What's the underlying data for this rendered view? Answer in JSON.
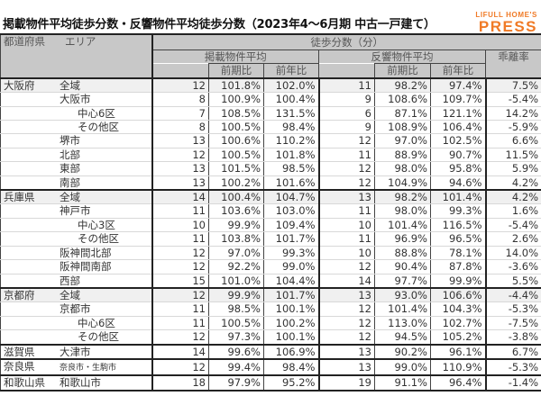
{
  "title": "掲載物件平均徒歩分数・反響物件平均徒歩分数（2023年4〜6月期 中古一戸建て）",
  "logo": {
    "line1": "LIFULL HOME'S",
    "line2": "PRESS",
    "color": "#f07a26"
  },
  "header": {
    "pref_label": "都道府県",
    "area_label": "エリア",
    "group_label": "徒歩分数（分）",
    "listing_avg": "掲載物件平均",
    "response_avg": "反響物件平均",
    "divergence": "乖離率",
    "qoq": "前期比",
    "yoy": "前年比"
  },
  "rows": [
    {
      "pref": "大阪府",
      "area": "全域",
      "indent": 0,
      "l": "12",
      "l_qoq": "101.8%",
      "l_yoy": "102.0%",
      "r": "11",
      "r_qoq": "98.2%",
      "r_yoy": "97.4%",
      "div": "7.5%"
    },
    {
      "pref": "",
      "area": "大阪市",
      "indent": 1,
      "l": "8",
      "l_qoq": "100.9%",
      "l_yoy": "100.4%",
      "r": "9",
      "r_qoq": "108.6%",
      "r_yoy": "109.7%",
      "div": "-5.4%"
    },
    {
      "pref": "",
      "area": "中心6区",
      "indent": 2,
      "l": "7",
      "l_qoq": "108.5%",
      "l_yoy": "131.5%",
      "r": "6",
      "r_qoq": "87.1%",
      "r_yoy": "121.1%",
      "div": "14.2%"
    },
    {
      "pref": "",
      "area": "その他区",
      "indent": 2,
      "l": "8",
      "l_qoq": "100.5%",
      "l_yoy": "98.4%",
      "r": "9",
      "r_qoq": "108.9%",
      "r_yoy": "106.4%",
      "div": "-5.9%"
    },
    {
      "pref": "",
      "area": "堺市",
      "indent": 1,
      "l": "13",
      "l_qoq": "100.6%",
      "l_yoy": "110.2%",
      "r": "12",
      "r_qoq": "97.0%",
      "r_yoy": "102.5%",
      "div": "6.6%"
    },
    {
      "pref": "",
      "area": "北部",
      "indent": 1,
      "l": "12",
      "l_qoq": "100.5%",
      "l_yoy": "101.8%",
      "r": "11",
      "r_qoq": "88.9%",
      "r_yoy": "90.7%",
      "div": "11.5%"
    },
    {
      "pref": "",
      "area": "東部",
      "indent": 1,
      "l": "13",
      "l_qoq": "101.5%",
      "l_yoy": "98.5%",
      "r": "12",
      "r_qoq": "98.0%",
      "r_yoy": "95.8%",
      "div": "5.9%"
    },
    {
      "pref": "",
      "area": "南部",
      "indent": 1,
      "l": "13",
      "l_qoq": "100.2%",
      "l_yoy": "101.6%",
      "r": "12",
      "r_qoq": "104.9%",
      "r_yoy": "94.6%",
      "div": "4.2%"
    },
    {
      "pref": "兵庫県",
      "area": "全域",
      "indent": 0,
      "l": "14",
      "l_qoq": "100.4%",
      "l_yoy": "104.7%",
      "r": "13",
      "r_qoq": "98.2%",
      "r_yoy": "101.4%",
      "div": "4.2%"
    },
    {
      "pref": "",
      "area": "神戸市",
      "indent": 1,
      "l": "11",
      "l_qoq": "103.6%",
      "l_yoy": "103.0%",
      "r": "11",
      "r_qoq": "98.0%",
      "r_yoy": "99.3%",
      "div": "1.6%"
    },
    {
      "pref": "",
      "area": "中心3区",
      "indent": 2,
      "l": "10",
      "l_qoq": "99.9%",
      "l_yoy": "109.4%",
      "r": "10",
      "r_qoq": "101.4%",
      "r_yoy": "116.5%",
      "div": "-5.4%"
    },
    {
      "pref": "",
      "area": "その他区",
      "indent": 2,
      "l": "11",
      "l_qoq": "103.8%",
      "l_yoy": "101.7%",
      "r": "11",
      "r_qoq": "96.9%",
      "r_yoy": "96.5%",
      "div": "2.6%"
    },
    {
      "pref": "",
      "area": "阪神間北部",
      "indent": 1,
      "l": "12",
      "l_qoq": "97.0%",
      "l_yoy": "99.3%",
      "r": "10",
      "r_qoq": "88.8%",
      "r_yoy": "78.1%",
      "div": "14.0%"
    },
    {
      "pref": "",
      "area": "阪神間南部",
      "indent": 1,
      "l": "12",
      "l_qoq": "92.2%",
      "l_yoy": "99.0%",
      "r": "12",
      "r_qoq": "90.4%",
      "r_yoy": "87.8%",
      "div": "-3.6%"
    },
    {
      "pref": "",
      "area": "西部",
      "indent": 1,
      "l": "15",
      "l_qoq": "101.0%",
      "l_yoy": "104.4%",
      "r": "14",
      "r_qoq": "97.7%",
      "r_yoy": "99.9%",
      "div": "5.5%"
    },
    {
      "pref": "京都府",
      "area": "全域",
      "indent": 0,
      "l": "12",
      "l_qoq": "99.9%",
      "l_yoy": "101.7%",
      "r": "13",
      "r_qoq": "93.0%",
      "r_yoy": "106.6%",
      "div": "-4.4%"
    },
    {
      "pref": "",
      "area": "京都市",
      "indent": 1,
      "l": "11",
      "l_qoq": "98.5%",
      "l_yoy": "100.1%",
      "r": "12",
      "r_qoq": "101.4%",
      "r_yoy": "104.3%",
      "div": "-5.3%"
    },
    {
      "pref": "",
      "area": "中心6区",
      "indent": 2,
      "l": "11",
      "l_qoq": "100.5%",
      "l_yoy": "100.2%",
      "r": "12",
      "r_qoq": "113.0%",
      "r_yoy": "102.7%",
      "div": "-7.5%"
    },
    {
      "pref": "",
      "area": "その他区",
      "indent": 2,
      "l": "12",
      "l_qoq": "97.3%",
      "l_yoy": "100.1%",
      "r": "12",
      "r_qoq": "94.5%",
      "r_yoy": "105.2%",
      "div": "-3.8%"
    },
    {
      "pref": "滋賀県",
      "area": "大津市",
      "indent": 1,
      "l": "14",
      "l_qoq": "99.6%",
      "l_yoy": "106.9%",
      "r": "13",
      "r_qoq": "90.2%",
      "r_yoy": "96.1%",
      "div": "6.7%"
    },
    {
      "pref": "奈良県",
      "area": "奈良市・生駒市",
      "indent": 1,
      "small": true,
      "l": "12",
      "l_qoq": "99.4%",
      "l_yoy": "98.4%",
      "r": "13",
      "r_qoq": "99.0%",
      "r_yoy": "110.9%",
      "div": "-5.3%"
    },
    {
      "pref": "和歌山県",
      "area": "和歌山市",
      "indent": 1,
      "l": "18",
      "l_qoq": "97.9%",
      "l_yoy": "95.2%",
      "r": "19",
      "r_qoq": "91.1%",
      "r_yoy": "96.4%",
      "div": "-1.4%"
    }
  ]
}
